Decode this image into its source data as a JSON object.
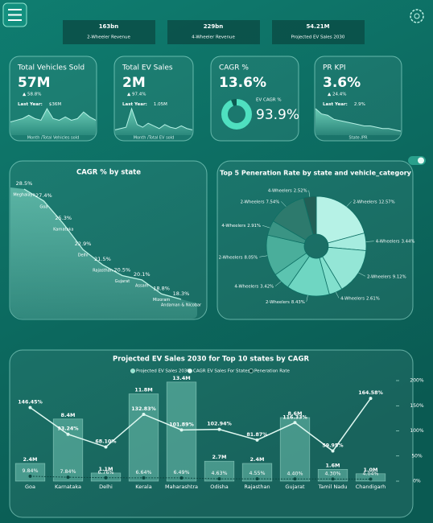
{
  "header": {
    "kpis": [
      {
        "value": "163bn",
        "label": "2-Wheeler Revenue"
      },
      {
        "value": "229bn",
        "label": "4-Wheeler Revenue"
      },
      {
        "value": "54.21M",
        "label": "Projected EV Sales 2030"
      }
    ]
  },
  "cards": [
    {
      "title": "Total Vehicles Sold",
      "value": "57M",
      "change": "▲ 58.8%",
      "last_year_label": "Last Year:",
      "last_year": "$36M",
      "footer": "Month /Total Vehicles sold",
      "trend": [
        8,
        9,
        10,
        12,
        10,
        9,
        16,
        10,
        9,
        11,
        9,
        10,
        14,
        11,
        9
      ]
    },
    {
      "title": "Total EV Sales",
      "value": "2M",
      "change": "▲ 97.4%",
      "last_year_label": "Last Year:",
      "last_year": "1.05M",
      "footer": "Month /Total EV sold",
      "trend": [
        4,
        5,
        6,
        20,
        8,
        6,
        9,
        7,
        5,
        8,
        6,
        5,
        7,
        5,
        4
      ]
    },
    {
      "title": "CAGR %",
      "value": "13.6%",
      "sub_title": "EV CAGR %",
      "gauge_label": "93.9%",
      "gauge": 93.9
    },
    {
      "title": "PR KPI",
      "value": "3.6%",
      "change": "▲ 24.4%",
      "last_year_label": "Last Year:",
      "last_year": "2.9%",
      "footer": "State /PR",
      "trend": [
        20,
        16,
        15,
        12,
        11,
        10,
        9,
        8,
        7,
        7,
        6,
        5,
        5,
        4,
        3
      ]
    }
  ],
  "chart_data": [
    {
      "type": "area",
      "title": "CAGR % by state",
      "categories": [
        "Meghalaya",
        "Goa",
        "Karnataka",
        "Delhi",
        "Rajasthan",
        "Gujarat",
        "Assam",
        "Mizoram",
        "Andaman & Nicobar"
      ],
      "values": [
        28.5,
        27.4,
        25.3,
        22.9,
        21.5,
        20.5,
        20.1,
        18.8,
        18.3
      ],
      "value_labels": [
        "28.5%",
        "27.4%",
        "25.3%",
        "22.9%",
        "21.5%",
        "20.5%",
        "20.1%",
        "18.8%",
        "18.3%"
      ],
      "color": "#bff3e6"
    },
    {
      "type": "donut",
      "title": "Top 5 Peneration Rate by state and vehicle_category",
      "categories": [
        "2-Wheelers",
        "4-Wheelers",
        "2-Wheelers",
        "4-Wheelers",
        "2-Wheelers",
        "4-Wheelers",
        "2-Wheelers",
        "4-Wheelers",
        "2-Wheelers",
        "4-Wheelers"
      ],
      "values": [
        12.57,
        3.44,
        9.12,
        2.61,
        8.43,
        3.42,
        8.05,
        2.91,
        7.54,
        2.52
      ],
      "value_labels": [
        "12.57%",
        "3.44%",
        "9.12%",
        "2.61%",
        "8.43%",
        "3.42%",
        "8.05%",
        "2.91%",
        "7.54%",
        "2.52%"
      ],
      "colors": [
        "#b6f2e6",
        "#a6ecdf",
        "#94e6d6",
        "#82e0cd",
        "#6fd6c2",
        "#5cc4b0",
        "#4aae9b",
        "#3a9484",
        "#2d7a6d",
        "#225f56"
      ]
    },
    {
      "type": "combo",
      "title": "Projected EV Sales 2030 for Top 10 states by CAGR",
      "categories": [
        "Goa",
        "Karnataka",
        "Delhi",
        "Kerala",
        "Maharashtra",
        "Odisha",
        "Rajasthan",
        "Gujarat",
        "Tamil Nadu",
        "Chandigarh"
      ],
      "ylim": [
        0,
        13.6
      ],
      "y2lim": [
        0,
        200
      ],
      "y2ticks": [
        {
          "value": 0,
          "label": "0%"
        },
        {
          "value": 50,
          "label": "50%"
        },
        {
          "value": 100,
          "label": "100%"
        },
        {
          "value": 150,
          "label": "150%"
        },
        {
          "value": 200,
          "label": "200%"
        }
      ],
      "series": [
        {
          "name": "Projected EV Sales 2030",
          "color": "#8fe3cf",
          "values": [
            2.4,
            8.4,
            1.1,
            11.8,
            13.4,
            2.7,
            2.4,
            8.6,
            1.6,
            1.0
          ],
          "value_labels": [
            "2.4M",
            "8.4M",
            "1.1M",
            "11.8M",
            "13.4M",
            "2.7M",
            "2.4M",
            "8.6M",
            "1.6M",
            "1.0M"
          ]
        },
        {
          "name": "CAGR EV Sales For States",
          "color": "#dff8f1",
          "axis": "y2",
          "values": [
            146.45,
            93.24,
            68.1,
            132.83,
            101.89,
            102.94,
            81.87,
            116.33,
            59.95,
            164.58
          ],
          "value_labels": [
            "146.45%",
            "93.24%",
            "68.10%",
            "132.83%",
            "101.89%",
            "102.94%",
            "81.87%",
            "116.33%",
            "59.95%",
            "164.58%"
          ]
        },
        {
          "name": "Peneration Rate",
          "color": "#0b4740",
          "axis": "y2",
          "values": [
            9.84,
            7.84,
            6.76,
            6.64,
            6.49,
            4.63,
            4.55,
            4.4,
            4.3,
            4.04
          ],
          "value_labels": [
            "9.84%",
            "7.84%",
            "6.76%",
            "6.64%",
            "6.49%",
            "4.63%",
            "4.55%",
            "4.40%",
            "4.30%",
            "4.04%"
          ]
        }
      ]
    }
  ]
}
